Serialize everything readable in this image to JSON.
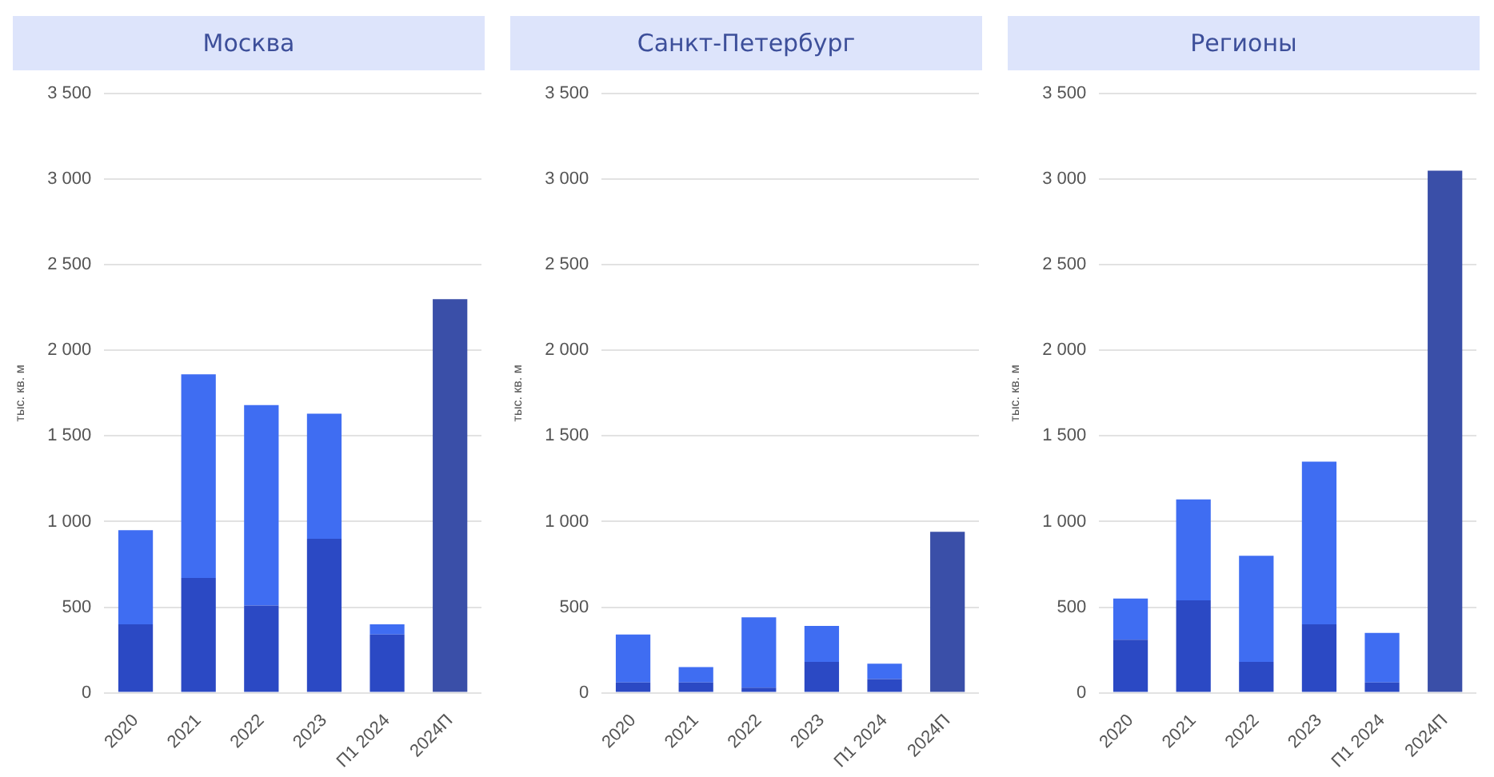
{
  "chart_data": [
    {
      "type": "bar",
      "title": "Москва",
      "ylabel": "тыс. кв. м",
      "categories": [
        "2020",
        "2021",
        "2022",
        "2023",
        "П1 2024",
        "2024П"
      ],
      "stacked": true,
      "grid": "y",
      "legend": false,
      "ylim": [
        0,
        3500
      ],
      "yticks": [
        {
          "value": 0,
          "label": "0"
        },
        {
          "value": 500,
          "label": "500"
        },
        {
          "value": 1000,
          "label": "1 000"
        },
        {
          "value": 1500,
          "label": "1 500"
        },
        {
          "value": 2000,
          "label": "2 000"
        },
        {
          "value": 2500,
          "label": "2 500"
        },
        {
          "value": 3000,
          "label": "3 000"
        },
        {
          "value": 3500,
          "label": "3 500"
        }
      ],
      "series": [
        {
          "color": "#2b49c4",
          "values": [
            400,
            670,
            510,
            900,
            340,
            null
          ]
        },
        {
          "color": "#3f6df2",
          "values": [
            550,
            1190,
            1170,
            730,
            60,
            null
          ]
        },
        {
          "color": "#3a4fa8",
          "values": [
            null,
            null,
            null,
            null,
            null,
            2300
          ]
        }
      ]
    },
    {
      "type": "bar",
      "title": "Санкт-Петербург",
      "ylabel": "тыс. кв. м",
      "categories": [
        "2020",
        "2021",
        "2022",
        "2023",
        "П1 2024",
        "2024П"
      ],
      "stacked": true,
      "grid": "y",
      "legend": false,
      "ylim": [
        0,
        3500
      ],
      "yticks": [
        {
          "value": 0,
          "label": "0"
        },
        {
          "value": 500,
          "label": "500"
        },
        {
          "value": 1000,
          "label": "1 000"
        },
        {
          "value": 1500,
          "label": "1 500"
        },
        {
          "value": 2000,
          "label": "2 000"
        },
        {
          "value": 2500,
          "label": "2 500"
        },
        {
          "value": 3000,
          "label": "3 000"
        },
        {
          "value": 3500,
          "label": "3 500"
        }
      ],
      "series": [
        {
          "color": "#2b49c4",
          "values": [
            60,
            60,
            30,
            180,
            80,
            null
          ]
        },
        {
          "color": "#3f6df2",
          "values": [
            280,
            90,
            410,
            210,
            90,
            null
          ]
        },
        {
          "color": "#3a4fa8",
          "values": [
            null,
            null,
            null,
            null,
            null,
            940
          ]
        }
      ]
    },
    {
      "type": "bar",
      "title": "Регионы",
      "ylabel": "тыс. кв. м",
      "categories": [
        "2020",
        "2021",
        "2022",
        "2023",
        "П1 2024",
        "2024П"
      ],
      "stacked": true,
      "grid": "y",
      "legend": false,
      "ylim": [
        0,
        3500
      ],
      "yticks": [
        {
          "value": 0,
          "label": "0"
        },
        {
          "value": 500,
          "label": "500"
        },
        {
          "value": 1000,
          "label": "1 000"
        },
        {
          "value": 1500,
          "label": "1 500"
        },
        {
          "value": 2000,
          "label": "2 000"
        },
        {
          "value": 2500,
          "label": "2 500"
        },
        {
          "value": 3000,
          "label": "3 000"
        },
        {
          "value": 3500,
          "label": "3 500"
        }
      ],
      "series": [
        {
          "color": "#2b49c4",
          "values": [
            310,
            540,
            180,
            400,
            60,
            null
          ]
        },
        {
          "color": "#3f6df2",
          "values": [
            240,
            590,
            620,
            950,
            290,
            null
          ]
        },
        {
          "color": "#3a4fa8",
          "values": [
            null,
            null,
            null,
            null,
            null,
            3050
          ]
        }
      ]
    }
  ]
}
